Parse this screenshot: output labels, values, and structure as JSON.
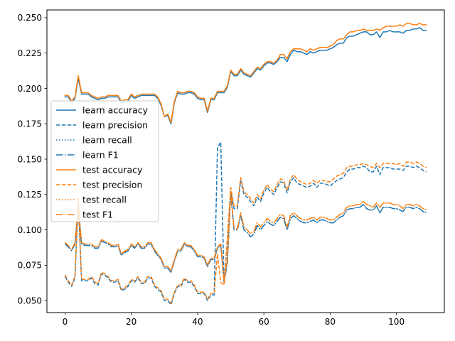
{
  "chart_data": {
    "type": "line",
    "title": "",
    "xlabel": "",
    "ylabel": "",
    "xlim": [
      -5.45,
      114.45
    ],
    "ylim": [
      0.0415,
      0.2555
    ],
    "xticks": [
      0,
      20,
      40,
      60,
      80,
      100
    ],
    "yticks": [
      0.05,
      0.075,
      0.1,
      0.125,
      0.15,
      0.175,
      0.2,
      0.225,
      0.25
    ],
    "xtick_labels": [
      "0",
      "20",
      "40",
      "60",
      "80",
      "100"
    ],
    "ytick_labels": [
      "0.050",
      "0.075",
      "0.100",
      "0.125",
      "0.150",
      "0.175",
      "0.200",
      "0.225",
      "0.250"
    ],
    "grid": false,
    "legend_position": "center-left",
    "x": [
      0,
      1,
      2,
      3,
      4,
      5,
      6,
      7,
      8,
      9,
      10,
      11,
      12,
      13,
      14,
      15,
      16,
      17,
      18,
      19,
      20,
      21,
      22,
      23,
      24,
      25,
      26,
      27,
      28,
      29,
      30,
      31,
      32,
      33,
      34,
      35,
      36,
      37,
      38,
      39,
      40,
      41,
      42,
      43,
      44,
      45,
      46,
      47,
      48,
      49,
      50,
      51,
      52,
      53,
      54,
      55,
      56,
      57,
      58,
      59,
      60,
      61,
      62,
      63,
      64,
      65,
      66,
      67,
      68,
      69,
      70,
      71,
      72,
      73,
      74,
      75,
      76,
      77,
      78,
      79,
      80,
      81,
      82,
      83,
      84,
      85,
      86,
      87,
      88,
      89,
      90,
      91,
      92,
      93,
      94,
      95,
      96,
      97,
      98,
      99,
      100,
      101,
      102,
      103,
      104,
      105,
      106,
      107,
      108,
      109
    ],
    "series": [
      {
        "name": "learn accuracy",
        "color": "#1f77b4",
        "dash": "solid",
        "values": [
          0.194,
          0.194,
          0.19,
          0.193,
          0.207,
          0.196,
          0.196,
          0.196,
          0.194,
          0.193,
          0.192,
          0.193,
          0.193,
          0.194,
          0.194,
          0.194,
          0.194,
          0.19,
          0.191,
          0.191,
          0.195,
          0.193,
          0.194,
          0.195,
          0.195,
          0.195,
          0.195,
          0.195,
          0.193,
          0.188,
          0.18,
          0.181,
          0.175,
          0.19,
          0.197,
          0.196,
          0.196,
          0.197,
          0.197,
          0.196,
          0.193,
          0.192,
          0.192,
          0.183,
          0.192,
          0.192,
          0.197,
          0.197,
          0.197,
          0.201,
          0.212,
          0.209,
          0.209,
          0.213,
          0.21,
          0.209,
          0.208,
          0.211,
          0.214,
          0.213,
          0.216,
          0.218,
          0.218,
          0.217,
          0.219,
          0.222,
          0.222,
          0.219,
          0.224,
          0.227,
          0.226,
          0.226,
          0.225,
          0.224,
          0.226,
          0.225,
          0.226,
          0.227,
          0.227,
          0.227,
          0.228,
          0.229,
          0.231,
          0.232,
          0.232,
          0.236,
          0.237,
          0.237,
          0.238,
          0.239,
          0.24,
          0.24,
          0.238,
          0.238,
          0.24,
          0.236,
          0.24,
          0.24,
          0.241,
          0.24,
          0.24,
          0.24,
          0.239,
          0.241,
          0.241,
          0.242,
          0.242,
          0.243,
          0.241,
          0.241
        ]
      },
      {
        "name": "learn precision",
        "color": "#1f77b4",
        "dash": "dashed",
        "values": [
          0.067,
          0.063,
          0.06,
          0.066,
          0.12,
          0.064,
          0.064,
          0.064,
          0.066,
          0.062,
          0.061,
          0.069,
          0.068,
          0.066,
          0.063,
          0.063,
          0.064,
          0.057,
          0.058,
          0.06,
          0.064,
          0.063,
          0.066,
          0.062,
          0.062,
          0.066,
          0.066,
          0.06,
          0.058,
          0.056,
          0.05,
          0.05,
          0.047,
          0.055,
          0.06,
          0.06,
          0.065,
          0.063,
          0.063,
          0.06,
          0.055,
          0.055,
          0.055,
          0.05,
          0.054,
          0.054,
          0.158,
          0.162,
          0.062,
          0.092,
          0.127,
          0.115,
          0.115,
          0.135,
          0.125,
          0.123,
          0.12,
          0.117,
          0.123,
          0.12,
          0.126,
          0.13,
          0.127,
          0.125,
          0.13,
          0.134,
          0.133,
          0.126,
          0.134,
          0.137,
          0.133,
          0.132,
          0.131,
          0.13,
          0.131,
          0.133,
          0.13,
          0.133,
          0.133,
          0.132,
          0.131,
          0.133,
          0.135,
          0.136,
          0.137,
          0.141,
          0.143,
          0.143,
          0.144,
          0.144,
          0.145,
          0.144,
          0.141,
          0.141,
          0.145,
          0.139,
          0.144,
          0.144,
          0.144,
          0.143,
          0.143,
          0.143,
          0.142,
          0.145,
          0.145,
          0.144,
          0.145,
          0.144,
          0.142,
          0.141
        ]
      },
      {
        "name": "learn recall",
        "color": "#1f77b4",
        "dash": "dotted",
        "values": [
          0.09,
          0.088,
          0.085,
          0.09,
          0.115,
          0.09,
          0.089,
          0.089,
          0.089,
          0.087,
          0.087,
          0.092,
          0.091,
          0.09,
          0.088,
          0.088,
          0.089,
          0.082,
          0.084,
          0.085,
          0.089,
          0.087,
          0.09,
          0.087,
          0.087,
          0.09,
          0.09,
          0.085,
          0.082,
          0.079,
          0.073,
          0.073,
          0.07,
          0.078,
          0.085,
          0.085,
          0.09,
          0.088,
          0.088,
          0.085,
          0.081,
          0.081,
          0.08,
          0.074,
          0.079,
          0.079,
          0.087,
          0.089,
          0.063,
          0.077,
          0.126,
          0.1,
          0.1,
          0.11,
          0.1,
          0.098,
          0.095,
          0.097,
          0.103,
          0.1,
          0.103,
          0.106,
          0.104,
          0.103,
          0.106,
          0.109,
          0.108,
          0.1,
          0.108,
          0.11,
          0.108,
          0.106,
          0.105,
          0.105,
          0.106,
          0.107,
          0.105,
          0.107,
          0.107,
          0.106,
          0.105,
          0.105,
          0.107,
          0.109,
          0.11,
          0.114,
          0.115,
          0.115,
          0.116,
          0.116,
          0.118,
          0.115,
          0.114,
          0.114,
          0.117,
          0.112,
          0.116,
          0.116,
          0.116,
          0.115,
          0.115,
          0.114,
          0.113,
          0.116,
          0.116,
          0.115,
          0.116,
          0.115,
          0.113,
          0.112
        ]
      },
      {
        "name": "learn F1",
        "color": "#1f77b4",
        "dash": "dashdot",
        "values": [
          0.09,
          0.088,
          0.085,
          0.09,
          0.115,
          0.09,
          0.089,
          0.089,
          0.089,
          0.087,
          0.087,
          0.092,
          0.091,
          0.09,
          0.088,
          0.088,
          0.089,
          0.082,
          0.084,
          0.085,
          0.089,
          0.087,
          0.09,
          0.087,
          0.087,
          0.09,
          0.09,
          0.085,
          0.082,
          0.079,
          0.073,
          0.073,
          0.07,
          0.078,
          0.085,
          0.085,
          0.09,
          0.088,
          0.088,
          0.085,
          0.081,
          0.081,
          0.08,
          0.074,
          0.079,
          0.079,
          0.087,
          0.089,
          0.063,
          0.077,
          0.126,
          0.1,
          0.1,
          0.11,
          0.1,
          0.098,
          0.095,
          0.097,
          0.103,
          0.1,
          0.103,
          0.106,
          0.104,
          0.103,
          0.106,
          0.109,
          0.108,
          0.1,
          0.108,
          0.11,
          0.108,
          0.106,
          0.105,
          0.105,
          0.106,
          0.107,
          0.105,
          0.107,
          0.107,
          0.106,
          0.105,
          0.105,
          0.107,
          0.109,
          0.11,
          0.114,
          0.115,
          0.115,
          0.116,
          0.116,
          0.118,
          0.115,
          0.114,
          0.114,
          0.117,
          0.112,
          0.116,
          0.116,
          0.116,
          0.115,
          0.115,
          0.114,
          0.113,
          0.116,
          0.116,
          0.115,
          0.116,
          0.115,
          0.113,
          0.112
        ]
      },
      {
        "name": "test accuracy",
        "color": "#ff7f0e",
        "dash": "solid",
        "values": [
          0.195,
          0.195,
          0.191,
          0.194,
          0.209,
          0.197,
          0.197,
          0.197,
          0.195,
          0.194,
          0.193,
          0.194,
          0.194,
          0.195,
          0.195,
          0.195,
          0.195,
          0.191,
          0.192,
          0.192,
          0.196,
          0.194,
          0.195,
          0.196,
          0.196,
          0.196,
          0.196,
          0.196,
          0.194,
          0.189,
          0.18,
          0.182,
          0.176,
          0.191,
          0.198,
          0.197,
          0.197,
          0.198,
          0.198,
          0.197,
          0.194,
          0.193,
          0.193,
          0.184,
          0.193,
          0.193,
          0.198,
          0.198,
          0.198,
          0.202,
          0.213,
          0.21,
          0.21,
          0.214,
          0.211,
          0.21,
          0.209,
          0.212,
          0.215,
          0.214,
          0.217,
          0.219,
          0.219,
          0.218,
          0.22,
          0.224,
          0.224,
          0.221,
          0.226,
          0.228,
          0.228,
          0.228,
          0.227,
          0.226,
          0.228,
          0.227,
          0.228,
          0.229,
          0.229,
          0.229,
          0.23,
          0.231,
          0.234,
          0.235,
          0.235,
          0.238,
          0.24,
          0.24,
          0.241,
          0.241,
          0.242,
          0.241,
          0.241,
          0.241,
          0.242,
          0.241,
          0.243,
          0.244,
          0.244,
          0.244,
          0.244,
          0.245,
          0.244,
          0.246,
          0.246,
          0.245,
          0.245,
          0.246,
          0.245,
          0.245
        ]
      },
      {
        "name": "test precision",
        "color": "#ff7f0e",
        "dash": "dashed",
        "values": [
          0.068,
          0.064,
          0.061,
          0.067,
          0.122,
          0.065,
          0.065,
          0.065,
          0.067,
          0.063,
          0.062,
          0.07,
          0.069,
          0.067,
          0.064,
          0.064,
          0.065,
          0.058,
          0.059,
          0.061,
          0.065,
          0.064,
          0.067,
          0.063,
          0.063,
          0.067,
          0.067,
          0.061,
          0.059,
          0.057,
          0.051,
          0.051,
          0.048,
          0.056,
          0.061,
          0.061,
          0.066,
          0.064,
          0.064,
          0.061,
          0.056,
          0.056,
          0.056,
          0.051,
          0.055,
          0.055,
          0.083,
          0.063,
          0.061,
          0.095,
          0.13,
          0.117,
          0.117,
          0.137,
          0.127,
          0.125,
          0.122,
          0.119,
          0.125,
          0.122,
          0.128,
          0.132,
          0.129,
          0.127,
          0.132,
          0.136,
          0.135,
          0.128,
          0.136,
          0.139,
          0.136,
          0.134,
          0.133,
          0.132,
          0.133,
          0.135,
          0.133,
          0.135,
          0.135,
          0.134,
          0.134,
          0.136,
          0.138,
          0.139,
          0.14,
          0.144,
          0.145,
          0.145,
          0.146,
          0.146,
          0.147,
          0.146,
          0.145,
          0.144,
          0.147,
          0.144,
          0.147,
          0.147,
          0.147,
          0.147,
          0.146,
          0.147,
          0.145,
          0.148,
          0.148,
          0.147,
          0.148,
          0.147,
          0.145,
          0.144
        ]
      },
      {
        "name": "test recall",
        "color": "#ff7f0e",
        "dash": "dotted",
        "values": [
          0.091,
          0.089,
          0.086,
          0.091,
          0.117,
          0.091,
          0.09,
          0.09,
          0.09,
          0.088,
          0.088,
          0.093,
          0.092,
          0.091,
          0.089,
          0.089,
          0.09,
          0.083,
          0.085,
          0.086,
          0.09,
          0.088,
          0.091,
          0.088,
          0.088,
          0.091,
          0.091,
          0.086,
          0.083,
          0.08,
          0.074,
          0.074,
          0.071,
          0.079,
          0.086,
          0.086,
          0.091,
          0.089,
          0.089,
          0.086,
          0.082,
          0.082,
          0.081,
          0.075,
          0.08,
          0.08,
          0.088,
          0.09,
          0.064,
          0.079,
          0.127,
          0.101,
          0.101,
          0.112,
          0.102,
          0.1,
          0.097,
          0.099,
          0.105,
          0.102,
          0.105,
          0.108,
          0.106,
          0.105,
          0.108,
          0.111,
          0.11,
          0.102,
          0.11,
          0.112,
          0.11,
          0.108,
          0.107,
          0.107,
          0.108,
          0.109,
          0.107,
          0.109,
          0.109,
          0.108,
          0.107,
          0.107,
          0.109,
          0.111,
          0.112,
          0.116,
          0.117,
          0.117,
          0.118,
          0.118,
          0.12,
          0.118,
          0.117,
          0.116,
          0.119,
          0.116,
          0.119,
          0.119,
          0.119,
          0.118,
          0.118,
          0.117,
          0.115,
          0.118,
          0.118,
          0.117,
          0.118,
          0.117,
          0.115,
          0.114
        ]
      },
      {
        "name": "test F1",
        "color": "#ff7f0e",
        "dash": "dashdot",
        "values": [
          0.091,
          0.089,
          0.086,
          0.091,
          0.117,
          0.091,
          0.09,
          0.09,
          0.09,
          0.088,
          0.088,
          0.093,
          0.092,
          0.091,
          0.089,
          0.089,
          0.09,
          0.083,
          0.085,
          0.086,
          0.09,
          0.088,
          0.091,
          0.088,
          0.088,
          0.091,
          0.091,
          0.086,
          0.083,
          0.08,
          0.074,
          0.074,
          0.071,
          0.079,
          0.086,
          0.086,
          0.091,
          0.089,
          0.089,
          0.086,
          0.082,
          0.082,
          0.081,
          0.075,
          0.08,
          0.08,
          0.088,
          0.09,
          0.064,
          0.079,
          0.127,
          0.101,
          0.101,
          0.112,
          0.102,
          0.1,
          0.097,
          0.099,
          0.105,
          0.102,
          0.105,
          0.108,
          0.106,
          0.105,
          0.108,
          0.111,
          0.11,
          0.102,
          0.11,
          0.112,
          0.11,
          0.108,
          0.107,
          0.107,
          0.108,
          0.109,
          0.107,
          0.109,
          0.109,
          0.108,
          0.107,
          0.107,
          0.109,
          0.111,
          0.112,
          0.116,
          0.117,
          0.117,
          0.118,
          0.118,
          0.12,
          0.118,
          0.117,
          0.116,
          0.119,
          0.116,
          0.119,
          0.119,
          0.119,
          0.118,
          0.118,
          0.117,
          0.115,
          0.118,
          0.118,
          0.117,
          0.118,
          0.117,
          0.115,
          0.114
        ]
      }
    ]
  }
}
